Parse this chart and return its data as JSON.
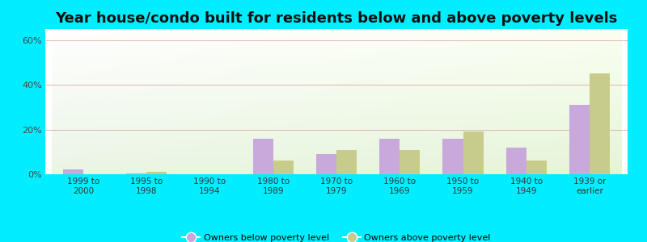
{
  "title": "Year house/condo built for residents below and above poverty levels",
  "categories": [
    "1999 to\n2000",
    "1995 to\n1998",
    "1990 to\n1994",
    "1980 to\n1989",
    "1970 to\n1979",
    "1960 to\n1969",
    "1950 to\n1959",
    "1940 to\n1949",
    "1939 or\nearlier"
  ],
  "below_poverty": [
    2.0,
    0.5,
    0.0,
    16.0,
    9.0,
    16.0,
    16.0,
    12.0,
    31.0
  ],
  "above_poverty": [
    0.0,
    1.0,
    0.0,
    6.0,
    11.0,
    11.0,
    19.0,
    6.0,
    45.0
  ],
  "below_color": "#c9a8dc",
  "above_color": "#c8cc8a",
  "ylim": [
    0,
    65
  ],
  "yticks": [
    0,
    20,
    40,
    60
  ],
  "ytick_labels": [
    "0%",
    "20%",
    "40%",
    "60%"
  ],
  "legend_below": "Owners below poverty level",
  "legend_above": "Owners above poverty level",
  "outer_bg": "#00eeff",
  "title_fontsize": 13,
  "bar_width": 0.32
}
